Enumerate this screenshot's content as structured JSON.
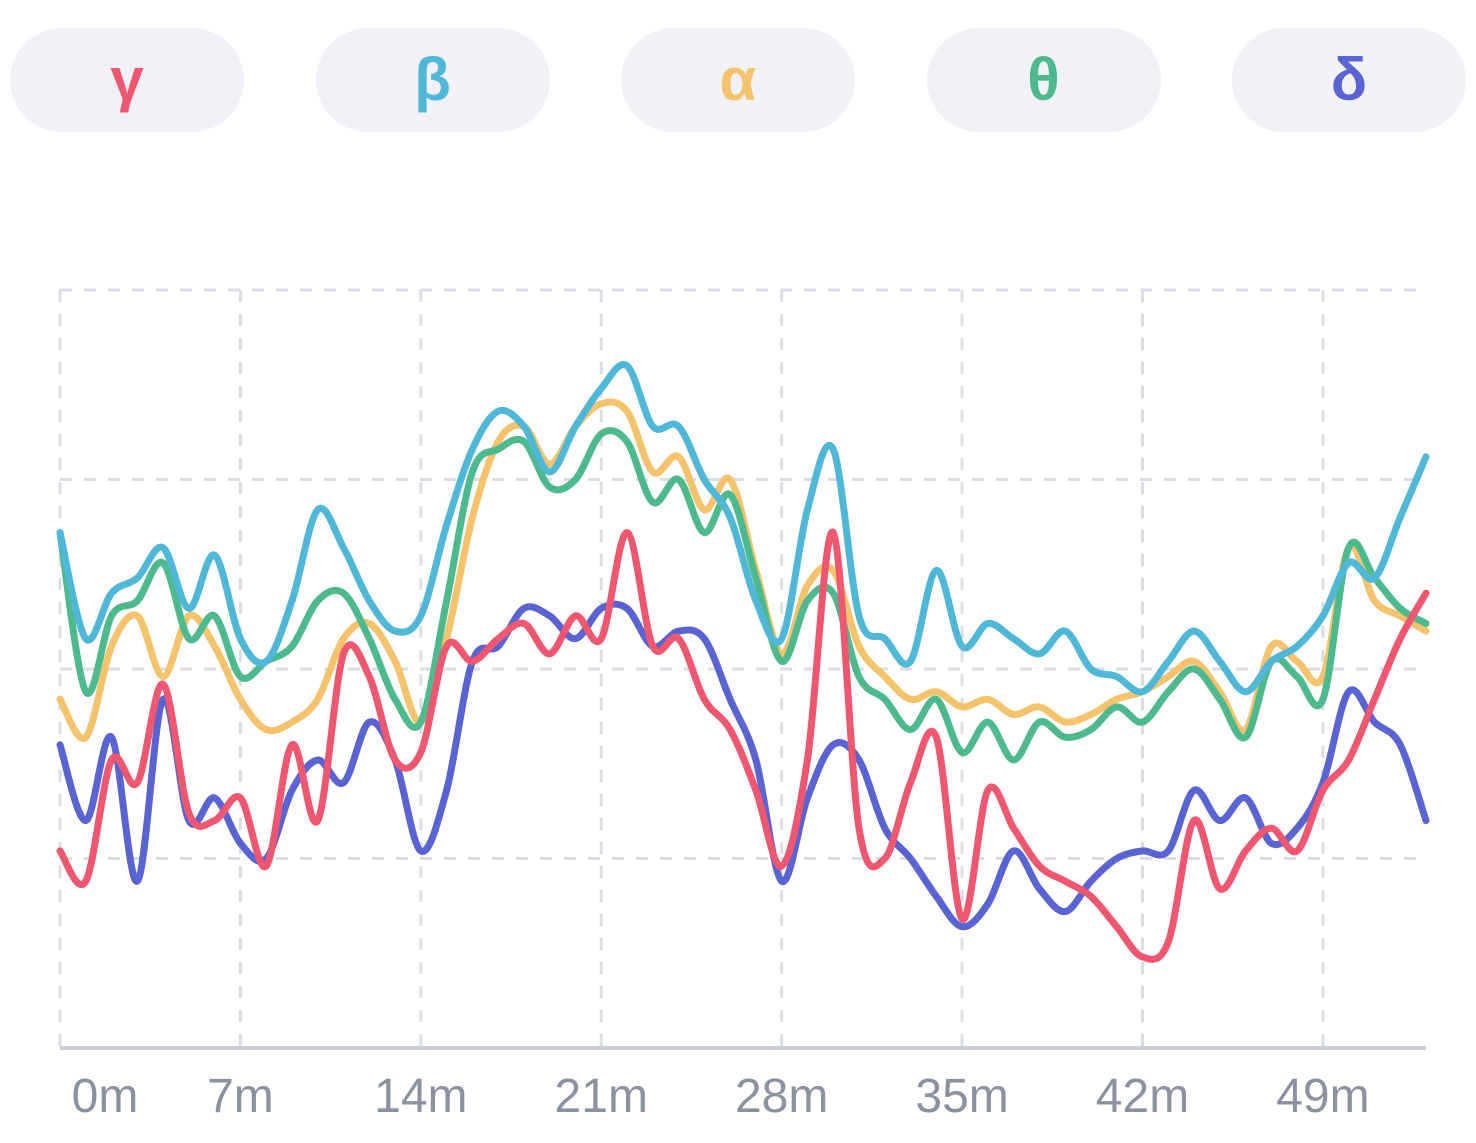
{
  "legend": {
    "items": [
      {
        "id": "gamma",
        "label": "γ",
        "color": "#EF5670"
      },
      {
        "id": "beta",
        "label": "β",
        "color": "#4FB8D8"
      },
      {
        "id": "alpha",
        "label": "α",
        "color": "#F5C36B"
      },
      {
        "id": "theta",
        "label": "θ",
        "color": "#4DBA8D"
      },
      {
        "id": "delta",
        "label": "δ",
        "color": "#5964D2"
      }
    ]
  },
  "colors": {
    "pill_bg": "#F1F2F7",
    "grid": "#D9DDE4",
    "axis": "#C9CED6",
    "tick_text": "#8A91A0"
  },
  "chart_data": {
    "type": "line",
    "title": "",
    "xlabel": "",
    "ylabel": "",
    "x_unit": "minutes",
    "grid": "dashed",
    "legend_position": "top",
    "x_ticks": [
      "0m",
      "7m",
      "14m",
      "21m",
      "28m",
      "35m",
      "42m",
      "49m"
    ],
    "x_tick_values": [
      0,
      7,
      14,
      21,
      28,
      35,
      42,
      49
    ],
    "x_range": [
      0,
      53
    ],
    "y_range": [
      0,
      100
    ],
    "y_gridline_values": [
      25,
      50,
      75,
      100
    ],
    "series": [
      {
        "name": "α",
        "id": "alpha",
        "color": "#F5C36B",
        "values": [
          46,
          41,
          53,
          57,
          49,
          57,
          53,
          46,
          42,
          43,
          46,
          54,
          56,
          51,
          43,
          54,
          70,
          80,
          82,
          77,
          82,
          85,
          84,
          76,
          78,
          71,
          75,
          63,
          52,
          61,
          63,
          53,
          49,
          46,
          47,
          45,
          46,
          44,
          45,
          43,
          44,
          46,
          47,
          49,
          51,
          47,
          42,
          53,
          51,
          49,
          66,
          59,
          57,
          55
        ]
      },
      {
        "name": "θ",
        "id": "theta",
        "color": "#4DBA8D",
        "values": [
          68,
          47,
          57,
          59,
          64,
          54,
          57,
          49,
          51,
          53,
          59,
          60,
          54,
          46,
          43,
          59,
          76,
          79,
          80,
          74,
          75,
          81,
          80,
          72,
          75,
          68,
          73,
          62,
          51,
          59,
          60,
          49,
          46,
          42,
          46,
          39,
          43,
          38,
          43,
          41,
          42,
          45,
          43,
          47,
          50,
          46,
          41,
          51,
          49,
          46,
          66,
          62,
          58,
          56
        ]
      },
      {
        "name": "β",
        "id": "beta",
        "color": "#4FB8D8",
        "values": [
          68,
          54,
          60,
          62,
          66,
          58,
          65,
          54,
          51,
          59,
          71,
          66,
          59,
          55,
          57,
          69,
          79,
          84,
          82,
          76,
          82,
          87,
          90,
          82,
          82,
          75,
          70,
          59,
          54,
          71,
          79,
          57,
          54,
          51,
          63,
          53,
          56,
          54,
          52,
          55,
          50,
          49,
          47,
          51,
          55,
          51,
          47,
          51,
          53,
          57,
          64,
          62,
          70,
          78
        ]
      },
      {
        "name": "δ",
        "id": "delta",
        "color": "#5964D2",
        "values": [
          40,
          30,
          41,
          22,
          46,
          30,
          33,
          27,
          25,
          34,
          38,
          35,
          43,
          38,
          26,
          34,
          51,
          53,
          58,
          57,
          54,
          58,
          58,
          53,
          55,
          54,
          46,
          38,
          22,
          33,
          40,
          38,
          29,
          25,
          20,
          16,
          19,
          26,
          21,
          18,
          22,
          25,
          26,
          26,
          34,
          30,
          33,
          27,
          29,
          35,
          47,
          43,
          40,
          30
        ]
      },
      {
        "name": "γ",
        "id": "gamma",
        "color": "#EF5670",
        "values": [
          26,
          22,
          38,
          35,
          48,
          31,
          30,
          33,
          24,
          40,
          30,
          52,
          49,
          38,
          39,
          53,
          51,
          54,
          56,
          52,
          57,
          54,
          68,
          53,
          54,
          46,
          42,
          34,
          24,
          38,
          68,
          29,
          25,
          35,
          41,
          17,
          34,
          29,
          24,
          22,
          20,
          16,
          12,
          14,
          30,
          21,
          26,
          29,
          26,
          34,
          38,
          46,
          54,
          60
        ]
      }
    ]
  }
}
